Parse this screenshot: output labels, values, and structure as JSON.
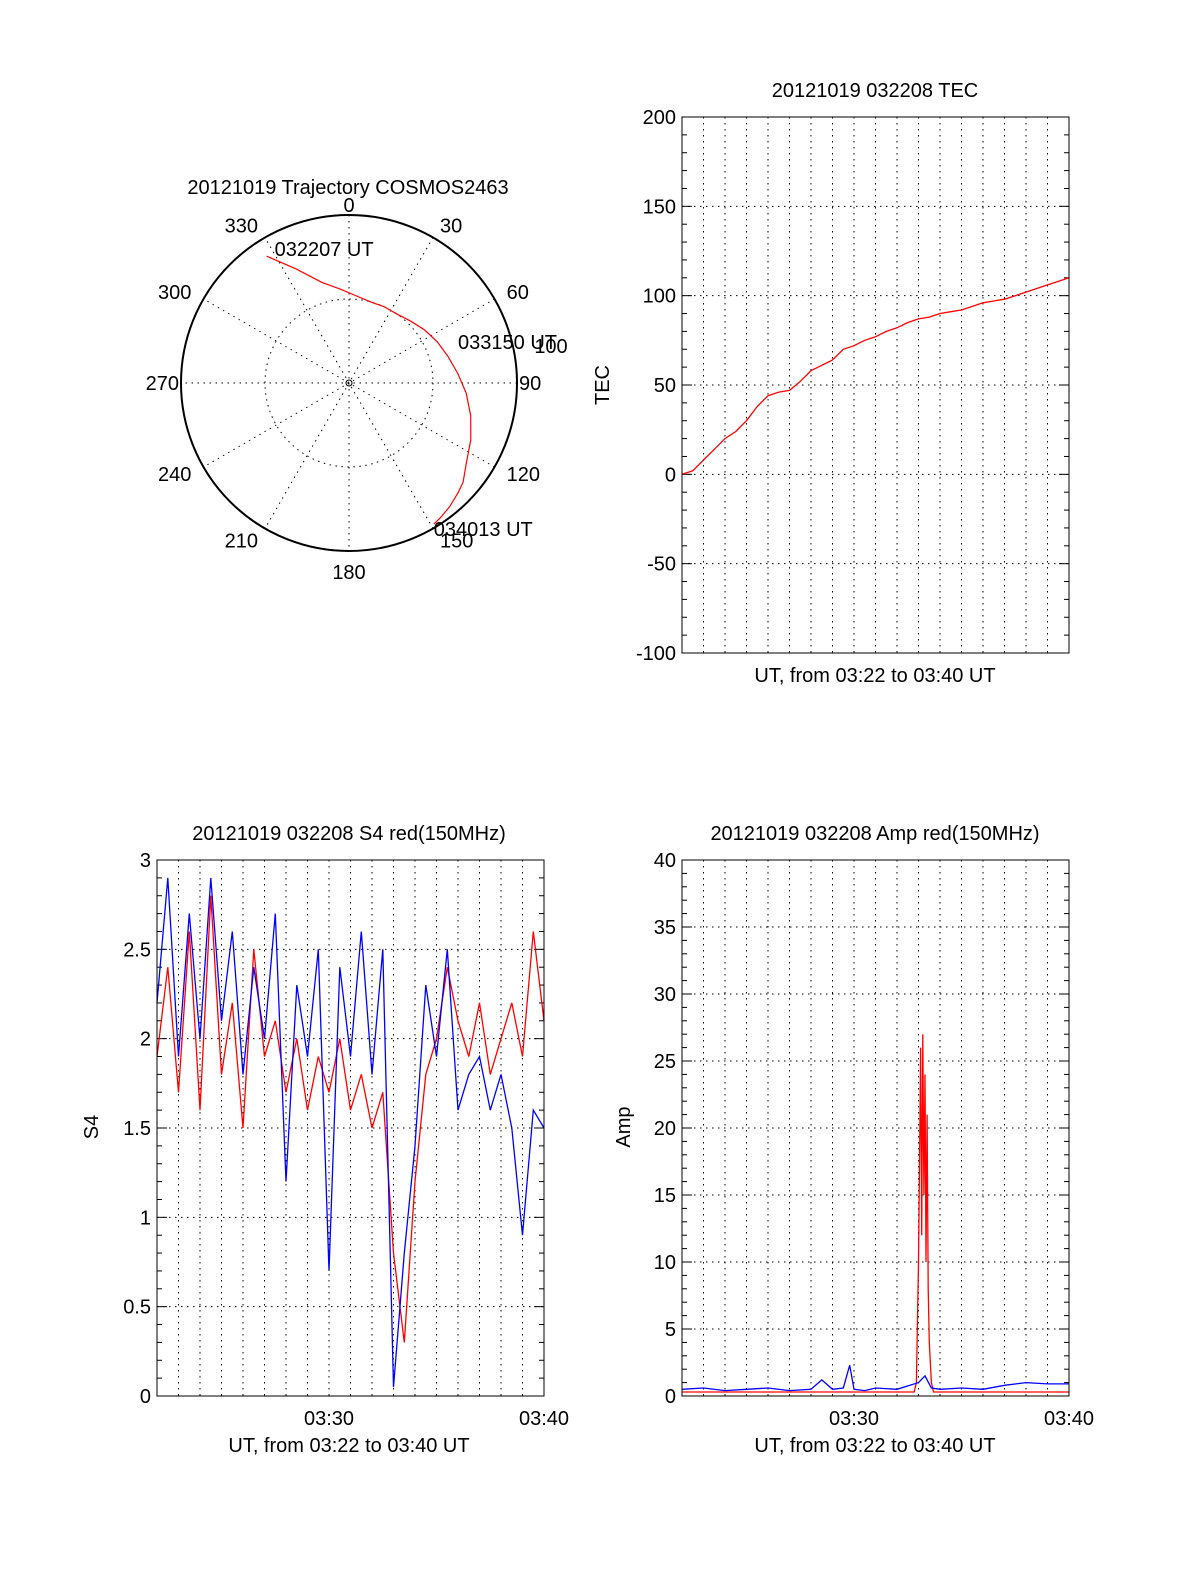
{
  "colors": {
    "red": "#ff0000",
    "blue": "#0000ff",
    "axis": "#000000",
    "background": "#ffffff"
  },
  "chart_data": [
    {
      "id": "trajectory",
      "type": "polar",
      "title": "20121019 Trajectory COSMOS2463",
      "angle_labels": [
        "0",
        "30",
        "60",
        "90",
        "120",
        "150",
        "180",
        "210",
        "240",
        "270",
        "300",
        "330"
      ],
      "angle_values": [
        0,
        30,
        60,
        90,
        120,
        150,
        180,
        210,
        240,
        270,
        300,
        330
      ],
      "radius_label": "100",
      "radius_label_value": 100,
      "inner_circle_radius": 50,
      "series": [
        {
          "color": "#ff0000",
          "points": [
            [
              327,
              90
            ],
            [
              335,
              75
            ],
            [
              345,
              62
            ],
            [
              355,
              56
            ],
            [
              5,
              52
            ],
            [
              15,
              50
            ],
            [
              25,
              50
            ],
            [
              35,
              50
            ],
            [
              45,
              52
            ],
            [
              55,
              55
            ],
            [
              65,
              58
            ],
            [
              75,
              61
            ],
            [
              85,
              65
            ],
            [
              95,
              70
            ],
            [
              105,
              75
            ],
            [
              115,
              80
            ],
            [
              125,
              85
            ],
            [
              131,
              90
            ],
            [
              135,
              92
            ],
            [
              141,
              95
            ],
            [
              146,
              97
            ],
            [
              149,
              98
            ]
          ]
        }
      ],
      "annotations": [
        {
          "text": "032207 UT",
          "angle": 327,
          "radius": 90
        },
        {
          "text": "033150 UT",
          "angle": 70,
          "radius": 45
        },
        {
          "text": "034013 UT",
          "angle": 149,
          "radius": 98
        }
      ]
    },
    {
      "id": "tec",
      "type": "line",
      "title": "20121019 032208 TEC",
      "xlabel": "UT, from 03:22 to 03:40 UT",
      "ylabel": "TEC",
      "xlim": [
        0,
        18
      ],
      "ylim": [
        -100,
        200
      ],
      "yticks": [
        -100,
        -50,
        0,
        50,
        100,
        150,
        200
      ],
      "ytick_labels": [
        "-100",
        "-50",
        "0",
        "50",
        "100",
        "150",
        "200"
      ],
      "xtick_labels": [],
      "series": [
        {
          "color": "#ff0000",
          "x": [
            0,
            0.5,
            1,
            1.5,
            2,
            2.5,
            3,
            3.5,
            4,
            4.5,
            5,
            5.5,
            6,
            6.5,
            7,
            7.5,
            8,
            8.5,
            9,
            9.5,
            10,
            10.5,
            11,
            11.5,
            12,
            12.5,
            13,
            13.5,
            14,
            14.5,
            15,
            15.5,
            16,
            16.5,
            17,
            17.5,
            18
          ],
          "y": [
            0,
            2,
            8,
            14,
            20,
            24,
            30,
            38,
            44,
            46,
            47,
            52,
            58,
            61,
            64,
            70,
            72,
            75,
            77,
            80,
            82,
            85,
            87,
            88,
            90,
            91,
            92,
            94,
            96,
            97,
            98,
            100,
            102,
            104,
            106,
            108,
            110
          ]
        }
      ]
    },
    {
      "id": "s4",
      "type": "line",
      "title": "20121019 032208 S4 red(150MHz)",
      "xlabel": "UT, from 03:22 to 03:40 UT",
      "ylabel": "S4",
      "xlim": [
        0,
        18
      ],
      "ylim": [
        0,
        3
      ],
      "yticks": [
        0,
        0.5,
        1,
        1.5,
        2,
        2.5,
        3
      ],
      "ytick_labels": [
        "0",
        "0.5",
        "1",
        "1.5",
        "2",
        "2.5",
        "3"
      ],
      "xticks": [
        8,
        18
      ],
      "xtick_labels": [
        "03:30",
        "03:40"
      ],
      "series": [
        {
          "color": "#ff0000",
          "x": [
            0,
            0.5,
            1,
            1.5,
            2,
            2.5,
            3,
            3.5,
            4,
            4.5,
            5,
            5.5,
            6,
            6.5,
            7,
            7.5,
            8,
            8.5,
            9,
            9.5,
            10,
            10.5,
            11,
            11.5,
            12,
            12.5,
            13,
            13.5,
            14,
            14.5,
            15,
            15.5,
            16,
            16.5,
            17,
            17.5,
            18
          ],
          "y": [
            1.9,
            2.4,
            1.7,
            2.6,
            1.6,
            2.8,
            1.8,
            2.2,
            1.5,
            2.5,
            1.9,
            2.1,
            1.7,
            2.0,
            1.6,
            1.9,
            1.7,
            2.0,
            1.6,
            1.8,
            1.5,
            1.7,
            0.8,
            0.3,
            1.2,
            1.8,
            2.0,
            2.4,
            2.1,
            1.9,
            2.2,
            1.8,
            2.0,
            2.2,
            1.9,
            2.6,
            2.1
          ]
        },
        {
          "color": "#0000ff",
          "x": [
            0,
            0.5,
            1,
            1.5,
            2,
            2.5,
            3,
            3.5,
            4,
            4.5,
            5,
            5.5,
            6,
            6.5,
            7,
            7.5,
            8,
            8.5,
            9,
            9.5,
            10,
            10.5,
            11,
            11.5,
            12,
            12.5,
            13,
            13.5,
            14,
            14.5,
            15,
            15.5,
            16,
            16.5,
            17,
            17.5,
            18
          ],
          "y": [
            2.2,
            2.9,
            1.9,
            2.7,
            2.0,
            2.9,
            2.1,
            2.6,
            1.8,
            2.4,
            2.0,
            2.7,
            1.2,
            2.3,
            1.9,
            2.5,
            0.7,
            2.4,
            1.9,
            2.6,
            1.8,
            2.5,
            0.05,
            0.8,
            1.4,
            2.3,
            1.9,
            2.5,
            1.6,
            1.8,
            1.9,
            1.6,
            1.8,
            1.5,
            0.9,
            1.6,
            1.5
          ]
        }
      ]
    },
    {
      "id": "amp",
      "type": "line",
      "title": "20121019 032208 Amp red(150MHz)",
      "xlabel": "UT, from 03:22 to 03:40 UT",
      "ylabel": "Amp",
      "xlim": [
        0,
        18
      ],
      "ylim": [
        0,
        40
      ],
      "yticks": [
        0,
        5,
        10,
        15,
        20,
        25,
        30,
        35,
        40
      ],
      "ytick_labels": [
        "0",
        "5",
        "10",
        "15",
        "20",
        "25",
        "30",
        "35",
        "40"
      ],
      "xticks": [
        8,
        18
      ],
      "xtick_labels": [
        "03:30",
        "03:40"
      ],
      "series": [
        {
          "color": "#ff0000",
          "x": [
            0,
            10.8,
            10.9,
            11.0,
            11.05,
            11.1,
            11.15,
            11.2,
            11.25,
            11.3,
            11.35,
            11.4,
            11.45,
            11.5,
            11.6,
            11.7,
            18
          ],
          "y": [
            0.3,
            0.3,
            1,
            10,
            18,
            26,
            12,
            27,
            15,
            24,
            10,
            21,
            8,
            4,
            1,
            0.3,
            0.3
          ]
        },
        {
          "color": "#0000ff",
          "x": [
            0,
            1,
            2,
            3,
            4,
            5,
            6,
            6.5,
            7,
            7.5,
            7.8,
            8,
            8.5,
            9,
            10,
            11,
            11.3,
            11.6,
            12,
            13,
            14,
            15,
            16,
            17,
            18
          ],
          "y": [
            0.5,
            0.6,
            0.4,
            0.5,
            0.6,
            0.4,
            0.5,
            1.2,
            0.5,
            0.6,
            2.3,
            0.5,
            0.4,
            0.6,
            0.5,
            1.0,
            1.5,
            0.6,
            0.5,
            0.6,
            0.5,
            0.8,
            1.0,
            0.9,
            0.9
          ]
        }
      ]
    }
  ]
}
